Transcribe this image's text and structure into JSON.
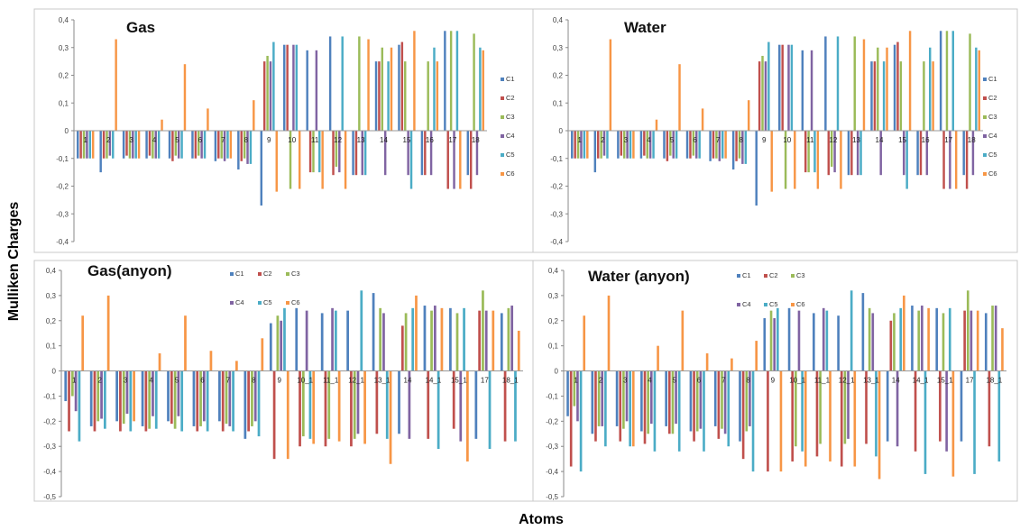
{
  "figure": {
    "ylabel": "Mulliken Charges",
    "xlabel": "Atoms"
  },
  "colors": {
    "C1": "#4F81BD",
    "C2": "#C0504D",
    "C3": "#9BBB59",
    "C4": "#8064A2",
    "C5": "#4BACC6",
    "C6": "#F79646"
  },
  "chart_data": [
    {
      "type": "bar",
      "title": "Gas",
      "legend": [
        "C1",
        "C2",
        "C3",
        "C4",
        "C5",
        "C6"
      ],
      "legend_position": "right",
      "ylim": [
        -0.4,
        0.4
      ],
      "yticks": [
        "-0,4",
        "-0,3",
        "-0,2",
        "-0,1",
        "0",
        "0,1",
        "0,2",
        "0,3",
        "0,4"
      ],
      "categories": [
        "1",
        "2",
        "3",
        "4",
        "5",
        "6",
        "7",
        "8",
        "9",
        "10",
        "11",
        "12",
        "13",
        "14",
        "15",
        "16",
        "17",
        "18"
      ],
      "series": [
        {
          "name": "C1",
          "values": [
            -0.1,
            -0.15,
            -0.1,
            -0.1,
            -0.1,
            -0.1,
            -0.11,
            -0.14,
            -0.27,
            0.31,
            0.29,
            0.34,
            -0.16,
            0.25,
            0.31,
            -0.16,
            0.36,
            -0.16
          ]
        },
        {
          "name": "C2",
          "values": [
            -0.1,
            -0.1,
            -0.09,
            -0.09,
            -0.11,
            -0.1,
            -0.1,
            -0.11,
            0.25,
            0.31,
            -0.15,
            -0.16,
            -0.16,
            0.25,
            0.32,
            -0.16,
            -0.21,
            -0.21
          ]
        },
        {
          "name": "C3",
          "values": [
            -0.1,
            -0.1,
            -0.1,
            -0.1,
            -0.09,
            -0.09,
            -0.1,
            -0.1,
            0.27,
            -0.21,
            -0.15,
            -0.13,
            0.34,
            0.3,
            0.25,
            0.25,
            0.36,
            0.35
          ]
        },
        {
          "name": "C4",
          "values": [
            -0.1,
            -0.09,
            -0.1,
            -0.1,
            -0.1,
            -0.1,
            -0.11,
            -0.12,
            0.25,
            0.31,
            0.29,
            -0.15,
            -0.16,
            -0.16,
            -0.16,
            -0.16,
            -0.21,
            -0.16
          ]
        },
        {
          "name": "C5",
          "values": [
            -0.1,
            -0.1,
            -0.1,
            -0.1,
            -0.1,
            -0.1,
            -0.1,
            -0.12,
            0.32,
            0.31,
            -0.15,
            0.34,
            -0.16,
            0.25,
            -0.21,
            0.3,
            0.36,
            0.3
          ]
        },
        {
          "name": "C6",
          "values": [
            -0.1,
            0.33,
            -0.1,
            0.04,
            0.24,
            0.08,
            -0.1,
            0.11,
            -0.22,
            -0.21,
            -0.21,
            -0.21,
            0.33,
            0.3,
            0.36,
            0.25,
            -0.21,
            0.29
          ]
        }
      ]
    },
    {
      "type": "bar",
      "title": "Water",
      "legend": [
        "C1",
        "C2",
        "C3",
        "C4",
        "C5",
        "C6"
      ],
      "legend_position": "right",
      "ylim": [
        -0.4,
        0.4
      ],
      "yticks": [
        "-0,4",
        "-0,3",
        "-0,2",
        "-0,1",
        "0",
        "0,1",
        "0,2",
        "0,3",
        "0,4"
      ],
      "categories": [
        "1",
        "2",
        "3",
        "4",
        "5",
        "6",
        "7",
        "8",
        "9",
        "10",
        "11",
        "12",
        "13",
        "14",
        "15",
        "16",
        "17",
        "18"
      ],
      "series": [
        {
          "name": "C1",
          "values": [
            -0.1,
            -0.15,
            -0.1,
            -0.1,
            -0.1,
            -0.1,
            -0.11,
            -0.14,
            -0.27,
            0.31,
            0.29,
            0.34,
            -0.16,
            0.25,
            0.31,
            -0.16,
            0.36,
            -0.16
          ]
        },
        {
          "name": "C2",
          "values": [
            -0.1,
            -0.1,
            -0.09,
            -0.09,
            -0.11,
            -0.1,
            -0.1,
            -0.11,
            0.25,
            0.31,
            -0.15,
            -0.16,
            -0.16,
            0.25,
            0.32,
            -0.16,
            -0.21,
            -0.21
          ]
        },
        {
          "name": "C3",
          "values": [
            -0.1,
            -0.1,
            -0.1,
            -0.1,
            -0.09,
            -0.09,
            -0.1,
            -0.1,
            0.27,
            -0.21,
            -0.15,
            -0.13,
            0.34,
            0.3,
            0.25,
            0.25,
            0.36,
            0.35
          ]
        },
        {
          "name": "C4",
          "values": [
            -0.1,
            -0.09,
            -0.1,
            -0.1,
            -0.1,
            -0.1,
            -0.11,
            -0.12,
            0.25,
            0.31,
            0.29,
            -0.15,
            -0.16,
            -0.16,
            -0.16,
            -0.16,
            -0.21,
            -0.16
          ]
        },
        {
          "name": "C5",
          "values": [
            -0.1,
            -0.1,
            -0.1,
            -0.1,
            -0.1,
            -0.1,
            -0.1,
            -0.12,
            0.32,
            0.31,
            -0.15,
            0.34,
            -0.16,
            0.25,
            -0.21,
            0.3,
            0.36,
            0.3
          ]
        },
        {
          "name": "C6",
          "values": [
            -0.1,
            0.33,
            -0.1,
            0.04,
            0.24,
            0.08,
            -0.1,
            0.11,
            -0.22,
            -0.21,
            -0.21,
            -0.21,
            0.33,
            0.3,
            0.36,
            0.25,
            -0.21,
            0.29
          ]
        }
      ]
    },
    {
      "type": "bar",
      "title": "Gas(anyon)",
      "legend": [
        "C1",
        "C2",
        "C3",
        "C4",
        "C5",
        "C6"
      ],
      "legend_position": "top-center",
      "ylim": [
        -0.5,
        0.4
      ],
      "yticks": [
        "-0,5",
        "-0,4",
        "-0,3",
        "-0,2",
        "-0,1",
        "0",
        "0,1",
        "0,2",
        "0,3",
        "0,4"
      ],
      "categories": [
        "1",
        "2",
        "3",
        "4",
        "5",
        "6",
        "7",
        "8",
        "9",
        "10",
        "11",
        "12",
        "13",
        "14",
        "15",
        "16",
        "17",
        "18"
      ],
      "category_labels": [
        "1",
        "2",
        "3",
        "4",
        "5",
        "6",
        "7",
        "8",
        "9",
        "10_1",
        "11_1",
        "12_1",
        "13_1",
        "14",
        "14_1",
        "15_1",
        "17",
        "18_1"
      ],
      "series": [
        {
          "name": "C1",
          "values": [
            -0.12,
            -0.22,
            -0.2,
            -0.22,
            -0.2,
            -0.22,
            -0.2,
            -0.27,
            0.19,
            0.25,
            0.23,
            0.24,
            0.31,
            -0.25,
            0.26,
            0.25,
            -0.27,
            0.23
          ]
        },
        {
          "name": "C2",
          "values": [
            -0.24,
            -0.24,
            -0.24,
            -0.24,
            -0.21,
            -0.24,
            -0.24,
            -0.24,
            -0.35,
            -0.3,
            -0.3,
            -0.3,
            -0.25,
            0.18,
            -0.27,
            -0.23,
            0.24,
            -0.28
          ]
        },
        {
          "name": "C3",
          "values": [
            -0.1,
            -0.2,
            -0.21,
            -0.23,
            -0.23,
            -0.22,
            -0.21,
            -0.22,
            0.22,
            -0.26,
            -0.27,
            -0.27,
            0.25,
            0.23,
            0.24,
            0.23,
            0.32,
            0.25
          ]
        },
        {
          "name": "C4",
          "values": [
            -0.16,
            -0.19,
            -0.17,
            -0.18,
            -0.18,
            -0.2,
            -0.22,
            -0.2,
            0.2,
            0.24,
            0.25,
            -0.25,
            0.23,
            -0.27,
            0.26,
            -0.28,
            0.24,
            0.26
          ]
        },
        {
          "name": "C5",
          "values": [
            -0.28,
            -0.23,
            -0.24,
            -0.23,
            -0.24,
            -0.24,
            -0.24,
            -0.26,
            0.25,
            -0.27,
            0.24,
            0.32,
            -0.27,
            0.25,
            -0.31,
            0.25,
            -0.31,
            -0.28
          ]
        },
        {
          "name": "C6",
          "values": [
            0.22,
            0.3,
            -0.2,
            0.07,
            0.22,
            0.08,
            0.04,
            0.13,
            -0.35,
            -0.29,
            -0.28,
            -0.29,
            -0.37,
            0.3,
            0.25,
            -0.36,
            0.24,
            0.16
          ]
        }
      ]
    },
    {
      "type": "bar",
      "title": "Water (anyon)",
      "legend": [
        "C1",
        "C2",
        "C3",
        "C4",
        "C5",
        "C6"
      ],
      "legend_position": "top-center",
      "ylim": [
        -0.5,
        0.4
      ],
      "yticks": [
        "-0,5",
        "-0,4",
        "-0,3",
        "-0,2",
        "-0,1",
        "0",
        "0,1",
        "0,2",
        "0,3",
        "0,4"
      ],
      "categories": [
        "1",
        "2",
        "3",
        "4",
        "5",
        "6",
        "7",
        "8",
        "9",
        "10",
        "11",
        "12",
        "13",
        "14",
        "15",
        "16",
        "17",
        "18"
      ],
      "category_labels": [
        "1",
        "2",
        "3",
        "4",
        "5",
        "6",
        "7",
        "8",
        "9",
        "10_1",
        "11_1",
        "12_1",
        "13_1",
        "14",
        "14_1",
        "15_1",
        "17",
        "18_1"
      ],
      "series": [
        {
          "name": "C1",
          "values": [
            -0.18,
            -0.25,
            -0.22,
            -0.24,
            -0.22,
            -0.24,
            -0.22,
            -0.28,
            0.21,
            0.25,
            0.23,
            0.22,
            0.31,
            -0.28,
            0.26,
            0.25,
            -0.28,
            0.23
          ]
        },
        {
          "name": "C2",
          "values": [
            -0.38,
            -0.28,
            -0.28,
            -0.29,
            -0.25,
            -0.28,
            -0.27,
            -0.35,
            -0.4,
            -0.36,
            -0.34,
            -0.38,
            -0.29,
            0.2,
            -0.32,
            -0.28,
            0.24,
            -0.3
          ]
        },
        {
          "name": "C3",
          "values": [
            -0.14,
            -0.22,
            -0.23,
            -0.25,
            -0.25,
            -0.24,
            -0.23,
            -0.24,
            0.24,
            -0.3,
            -0.29,
            -0.29,
            0.25,
            0.23,
            0.24,
            0.23,
            0.32,
            0.26
          ]
        },
        {
          "name": "C4",
          "values": [
            -0.2,
            -0.22,
            -0.2,
            -0.21,
            -0.21,
            -0.23,
            -0.25,
            -0.22,
            0.21,
            0.24,
            0.25,
            -0.27,
            0.23,
            -0.3,
            0.26,
            -0.32,
            0.24,
            0.26
          ]
        },
        {
          "name": "C5",
          "values": [
            -0.4,
            -0.3,
            -0.3,
            -0.32,
            -0.32,
            -0.32,
            -0.3,
            -0.4,
            0.25,
            -0.32,
            0.24,
            0.32,
            -0.34,
            0.25,
            -0.41,
            0.25,
            -0.41,
            -0.36
          ]
        },
        {
          "name": "C6",
          "values": [
            0.22,
            0.3,
            -0.3,
            0.1,
            0.24,
            0.07,
            0.05,
            0.12,
            -0.4,
            -0.38,
            -0.36,
            -0.38,
            -0.43,
            0.3,
            0.25,
            -0.42,
            0.24,
            0.17
          ]
        }
      ]
    }
  ]
}
